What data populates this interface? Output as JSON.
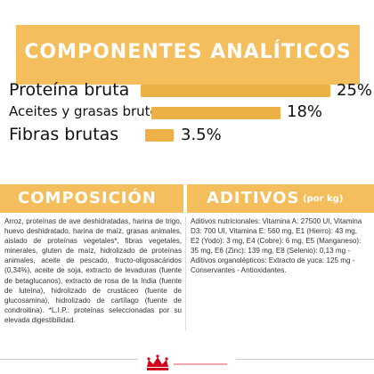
{
  "analytical": {
    "title": "COMPONENTES ANALÍTICOS",
    "rows": [
      {
        "label": "Proteína bruta",
        "value": "25%"
      },
      {
        "label": "Aceites y grasas brutos",
        "value": "18%"
      },
      {
        "label": "Fibras brutas",
        "value": "3.5%"
      }
    ]
  },
  "composition": {
    "title": "COMPOSICIÓN",
    "text": "Arroz, proteínas de ave deshidratadas, harina de trigo, huevo deshidratado, harina de maíz, grasas animales, aislado de proteínas vegetales*, fibras vegetales, minerales, gluten de maíz, hidrolizado de proteínas animales, aceite de pescado, fructo-oligosacáridos (0,34%), aceite de soja, extracto de levaduras (fuente de betaglucanos), extracto de rosa de la India (fuente de luteína), hidrolizado de crustáceo (fuente de glucosamina), hidrolizado de cartílago (fuente de condroitina). *L.I.P.: proteínas seleccionadas por su elevada digestibilidad."
  },
  "additives": {
    "title": "ADITIVOS",
    "title_suffix": "(por kg)",
    "lines": [
      "Aditivos nutricionales: Vitamina A: 27500 UI, Vitamina D3: 700 UI, Vitamina E: 560 mg, E1 (Hierro): 43 mg, E2 (Yodo): 3 mg, E4 (Cobre): 6 mg, E5 (Manganeso): 35 mg, E6 (Zinc): 139 mg, E8 (Selenio): 0,13 mg -",
      "Aditivos organolépticos: Extracto de yuca: 125 mg -",
      "Conservantes - Antioxidantes."
    ]
  },
  "icons": {
    "logo": "royal-crown-logo"
  },
  "colors": {
    "accent": "#f5be5c",
    "bar": "#ebb046",
    "logo_red": "#d0021b"
  }
}
